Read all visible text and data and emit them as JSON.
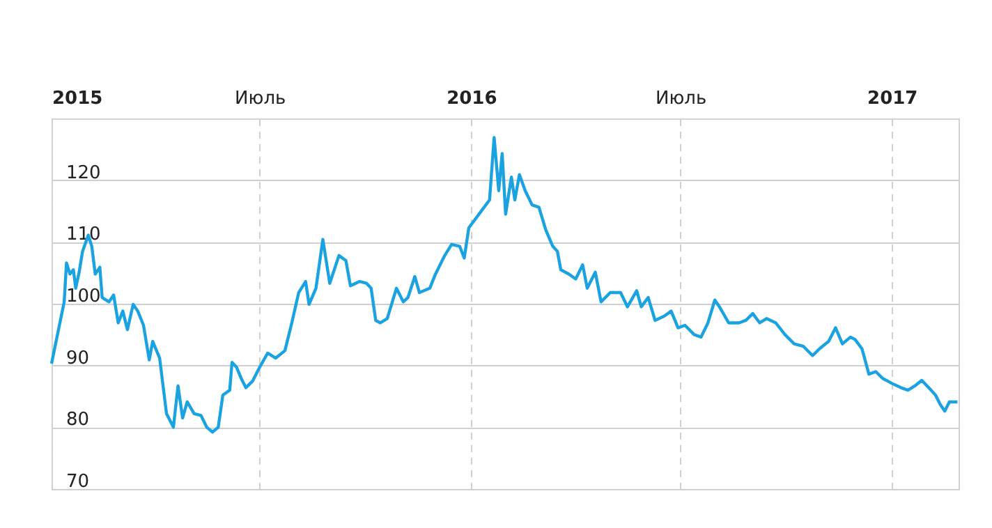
{
  "chart_data": {
    "type": "line",
    "x": [
      "2015-01-01",
      "2015-01-12",
      "2015-01-14",
      "2015-01-17",
      "2015-01-20",
      "2015-01-22",
      "2015-01-25",
      "2015-01-28",
      "2015-02-02",
      "2015-02-05",
      "2015-02-08",
      "2015-02-12",
      "2015-02-14",
      "2015-02-20",
      "2015-02-24",
      "2015-02-28",
      "2015-03-04",
      "2015-03-08",
      "2015-03-13",
      "2015-03-17",
      "2015-03-22",
      "2015-03-27",
      "2015-03-30",
      "2015-04-05",
      "2015-04-11",
      "2015-04-17",
      "2015-04-21",
      "2015-04-25",
      "2015-04-29",
      "2015-05-05",
      "2015-05-11",
      "2015-05-16",
      "2015-05-21",
      "2015-05-26",
      "2015-05-30",
      "2015-06-05",
      "2015-06-07",
      "2015-06-11",
      "2015-06-15",
      "2015-06-19",
      "2015-06-25",
      "2015-07-01",
      "2015-07-08",
      "2015-07-15",
      "2015-07-23",
      "2015-07-29",
      "2015-08-04",
      "2015-08-10",
      "2015-08-13",
      "2015-08-19",
      "2015-08-25",
      "2015-08-31",
      "2015-09-08",
      "2015-09-14",
      "2015-09-18",
      "2015-09-26",
      "2015-10-02",
      "2015-10-06",
      "2015-10-10",
      "2015-10-14",
      "2015-10-20",
      "2015-10-28",
      "2015-11-03",
      "2015-11-07",
      "2015-11-13",
      "2015-11-17",
      "2015-11-26",
      "2015-12-01",
      "2015-12-09",
      "2015-12-15",
      "2015-12-22",
      "2015-12-26",
      "2015-12-30",
      "2016-01-11",
      "2016-01-17",
      "2016-01-21",
      "2016-01-25",
      "2016-01-28",
      "2016-01-31",
      "2016-02-05",
      "2016-02-08",
      "2016-02-12",
      "2016-02-17",
      "2016-02-23",
      "2016-02-29",
      "2016-03-06",
      "2016-03-12",
      "2016-03-16",
      "2016-03-19",
      "2016-03-26",
      "2016-04-01",
      "2016-04-07",
      "2016-04-11",
      "2016-04-18",
      "2016-04-23",
      "2016-05-01",
      "2016-05-10",
      "2016-05-16",
      "2016-05-24",
      "2016-05-28",
      "2016-06-03",
      "2016-06-09",
      "2016-06-17",
      "2016-06-23",
      "2016-06-29",
      "2016-07-05",
      "2016-07-13",
      "2016-07-19",
      "2016-07-25",
      "2016-07-31",
      "2016-08-04",
      "2016-08-12",
      "2016-08-21",
      "2016-08-27",
      "2016-09-02",
      "2016-09-08",
      "2016-09-14",
      "2016-09-22",
      "2016-09-30",
      "2016-10-08",
      "2016-10-16",
      "2016-10-24",
      "2016-10-30",
      "2016-11-07",
      "2016-11-13",
      "2016-11-19",
      "2016-11-26",
      "2016-11-30",
      "2016-12-06",
      "2016-12-12",
      "2016-12-18",
      "2016-12-24",
      "2017-01-01",
      "2017-01-09",
      "2017-01-15",
      "2017-01-21",
      "2017-01-27",
      "2017-02-02",
      "2017-02-08",
      "2017-02-12",
      "2017-02-16",
      "2017-02-20",
      "2017-02-27"
    ],
    "series": [
      {
        "color": "#1ba3e1",
        "values": [
          90.3,
          100.3,
          106.6,
          104.8,
          105.5,
          102.5,
          105.1,
          108.5,
          111.1,
          109.3,
          104.8,
          105.9,
          101,
          100.3,
          101.4,
          96.9,
          98.8,
          95.8,
          99.9,
          98.8,
          96.5,
          90.9,
          93.9,
          91.2,
          82.2,
          80,
          86.7,
          81.5,
          84.1,
          82.2,
          81.9,
          80,
          79.2,
          80,
          85.2,
          86,
          90.5,
          89.7,
          87.9,
          86.4,
          87.5,
          89.7,
          92,
          91.2,
          92.4,
          96.9,
          101.8,
          103.6,
          99.9,
          102.5,
          110.4,
          103.3,
          107.8,
          107,
          102.9,
          103.6,
          103.3,
          102.5,
          97.3,
          96.9,
          97.6,
          102.5,
          100.3,
          101,
          104.4,
          101.8,
          102.5,
          104.8,
          107.8,
          109.6,
          109.3,
          107.4,
          112.3,
          115.3,
          116.8,
          126.9,
          118.3,
          124.3,
          114.5,
          120.5,
          116.8,
          120.9,
          118.3,
          116,
          115.6,
          111.9,
          109.3,
          108.5,
          105.5,
          104.8,
          104,
          106.3,
          102.5,
          105.1,
          100.3,
          101.8,
          101.8,
          99.5,
          102.1,
          99.5,
          101,
          97.3,
          98,
          98.8,
          96.1,
          96.5,
          95,
          94.6,
          96.9,
          100.6,
          99.5,
          96.9,
          96.9,
          97.3,
          98.4,
          96.9,
          97.6,
          96.9,
          95,
          93.5,
          93.1,
          91.6,
          92.7,
          93.9,
          96.1,
          93.5,
          94.6,
          94.2,
          92.7,
          88.6,
          89,
          87.9,
          87.1,
          86.4,
          86,
          86.7,
          87.6,
          86.4,
          85.2,
          83.7,
          82.6,
          84.1,
          84.1
        ]
      }
    ],
    "xlim": [
      "2015-01-01",
      "2017-02-28"
    ],
    "xticks": [
      {
        "value": "2015-01-01",
        "label": "2015"
      },
      {
        "value": "2015-07-01",
        "label": "Июль"
      },
      {
        "value": "2016-01-01",
        "label": "2016"
      },
      {
        "value": "2016-07-01",
        "label": "Июль"
      },
      {
        "value": "2017-01-01",
        "label": "2017"
      }
    ],
    "ylim": [
      70,
      130
    ],
    "yticks": [
      70,
      80,
      90,
      100,
      110,
      120
    ],
    "grid": true
  }
}
